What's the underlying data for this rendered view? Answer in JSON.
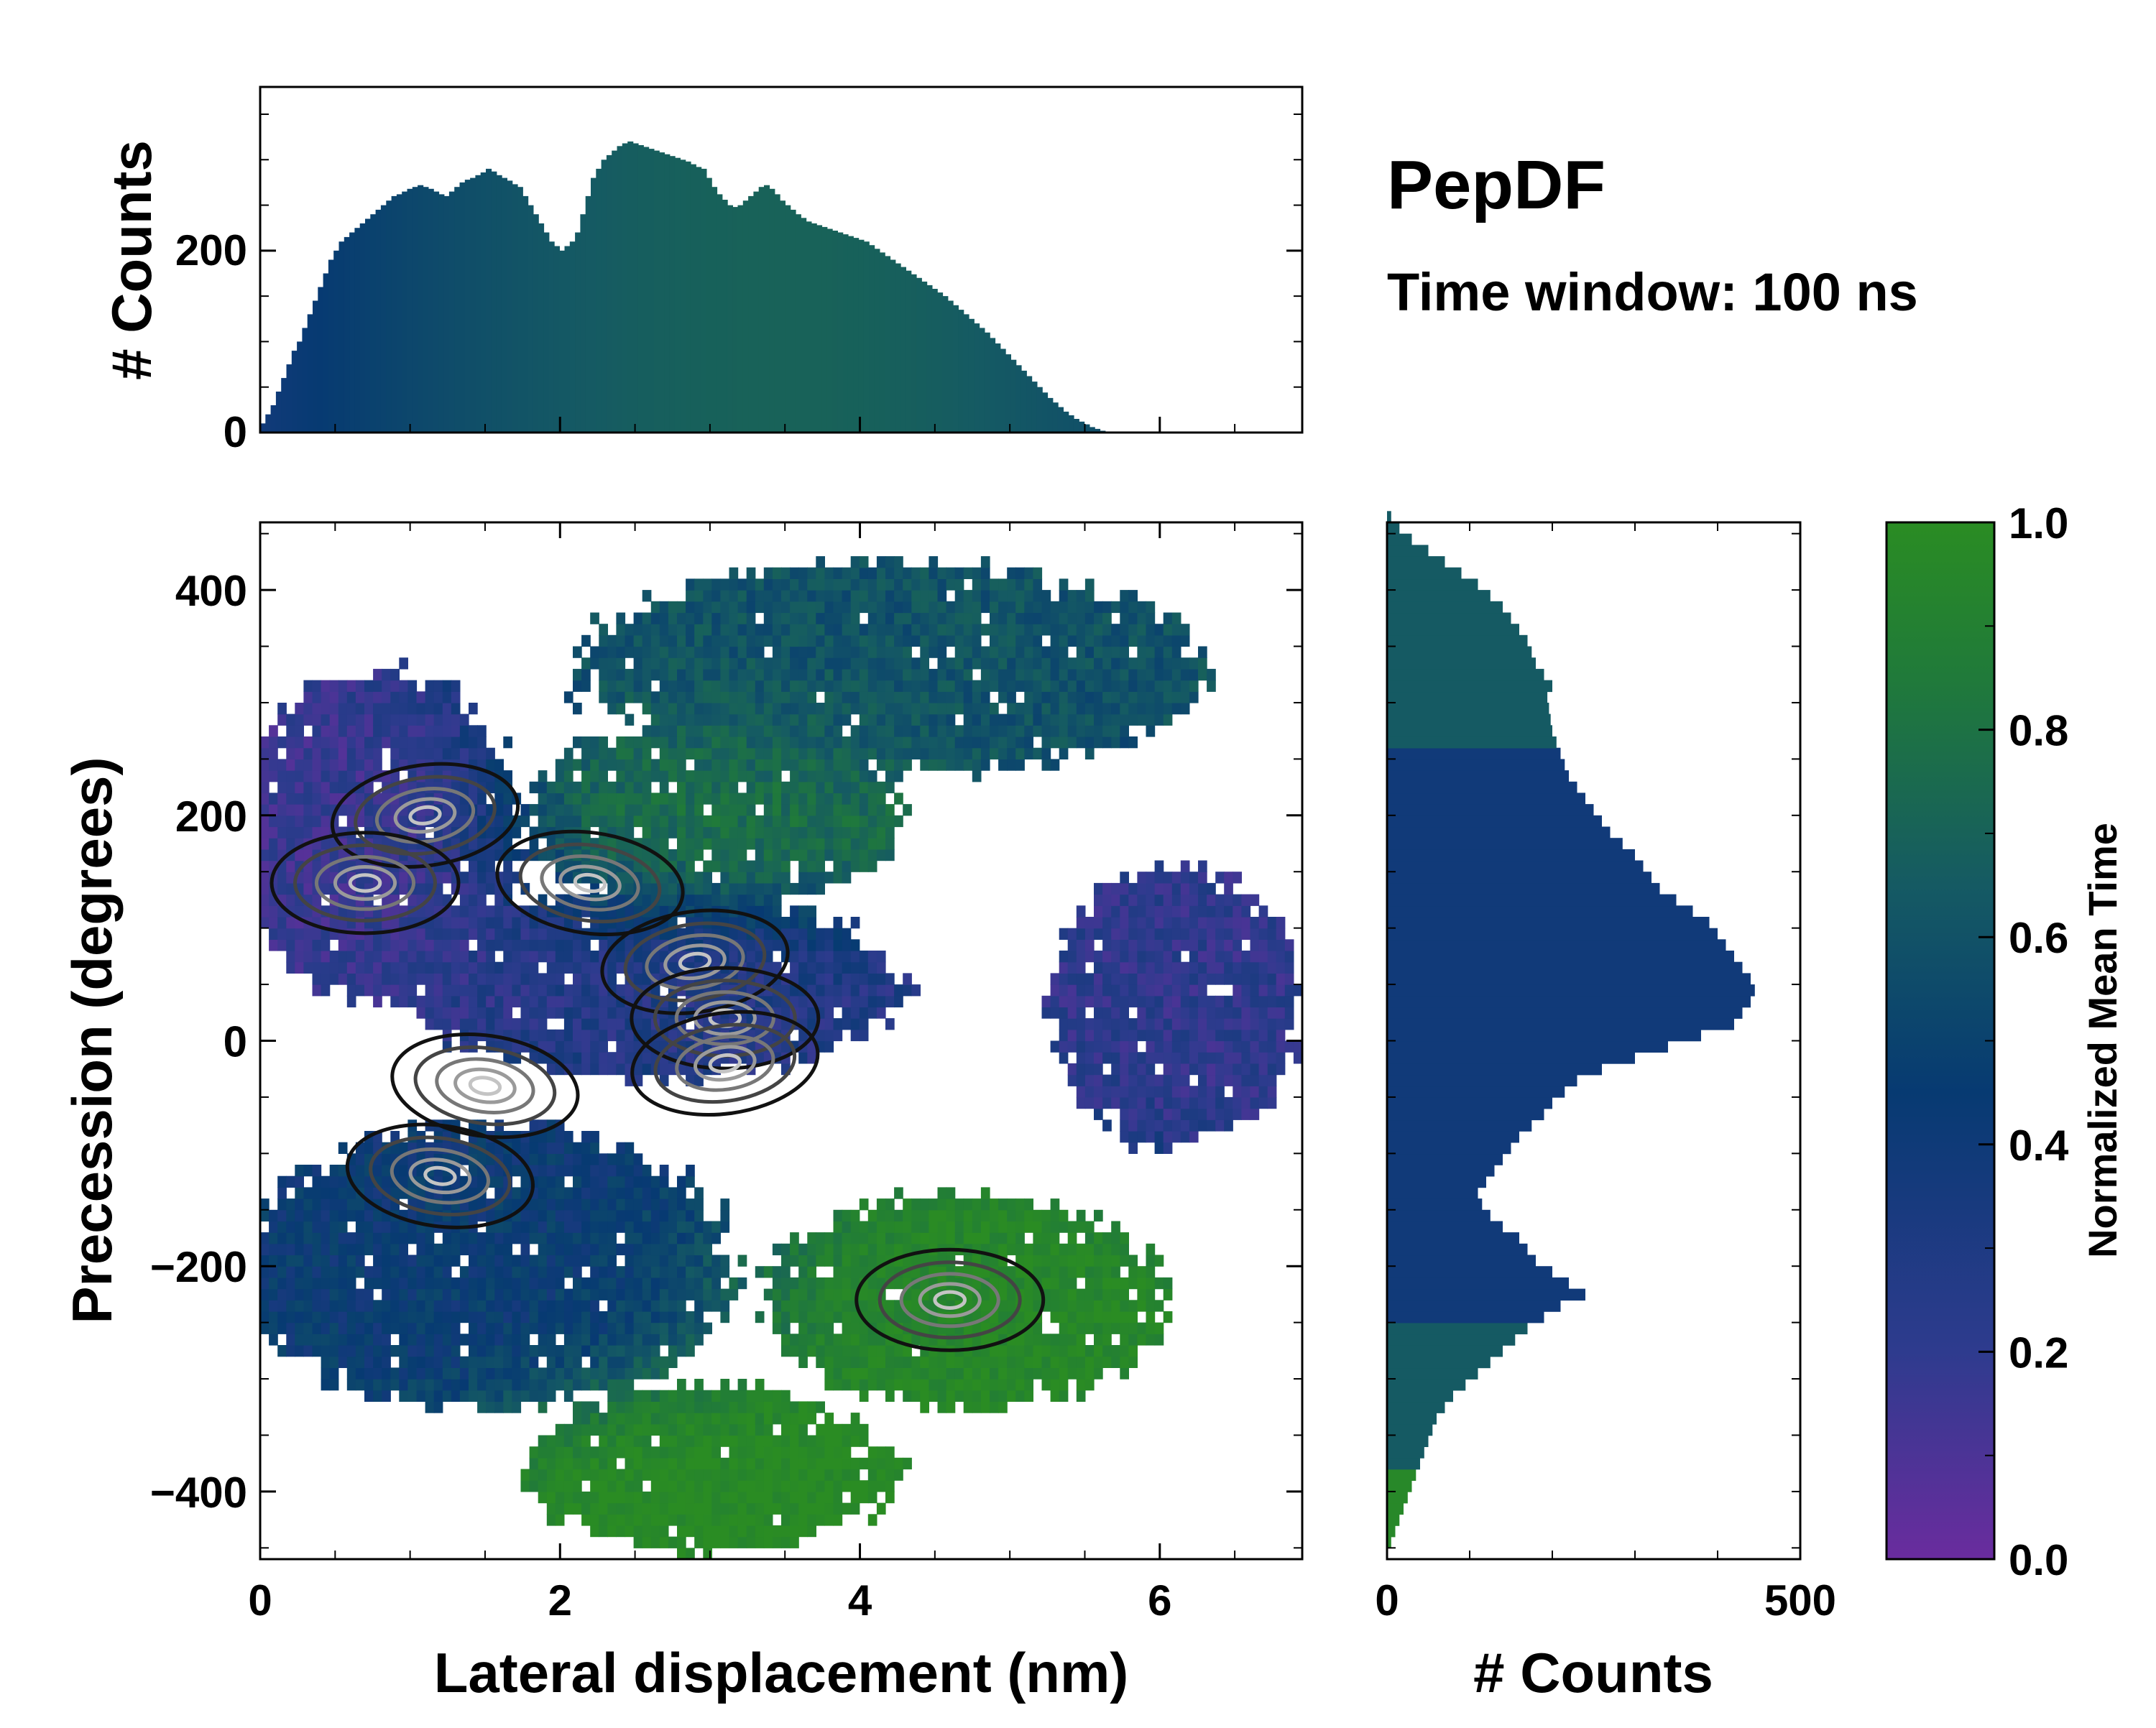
{
  "chart_data": {
    "type": "heatmap",
    "title": "PepDF",
    "subtitle": "Time window: 100 ns",
    "main": {
      "xlabel": "Lateral displacement (nm)",
      "ylabel": "Precession (degrees)",
      "xlim": [
        0,
        6.95
      ],
      "ylim": [
        -460,
        460
      ],
      "xticks": [
        0,
        2,
        4,
        6
      ],
      "xtick_labels": [
        "0",
        "2",
        "4",
        "6"
      ],
      "yticks": [
        400,
        200,
        0,
        -200,
        -400
      ],
      "ytick_labels": [
        "400",
        "200",
        "0",
        "−200",
        "−400"
      ],
      "color_metric": "Normalized Mean Time",
      "grid": false,
      "regions": [
        {
          "name": "upper-left",
          "x": 0.8,
          "y": 180,
          "rx": 0.9,
          "ry": 140,
          "t": 0.15
        },
        {
          "name": "upper-band",
          "x": 4.2,
          "y": 330,
          "rx": 2.0,
          "ry": 90,
          "t": 0.55
        },
        {
          "name": "upper-mid-green",
          "x": 3.0,
          "y": 200,
          "rx": 1.2,
          "ry": 80,
          "t": 0.75
        },
        {
          "name": "center",
          "x": 2.6,
          "y": 50,
          "rx": 1.6,
          "ry": 80,
          "t": 0.25
        },
        {
          "name": "right-arm",
          "x": 6.1,
          "y": 30,
          "rx": 0.8,
          "ry": 120,
          "t": 0.2
        },
        {
          "name": "lower-band",
          "x": 1.5,
          "y": -200,
          "rx": 1.6,
          "ry": 120,
          "t": 0.4
        },
        {
          "name": "lower-right-green",
          "x": 4.7,
          "y": -230,
          "rx": 1.3,
          "ry": 90,
          "t": 0.95
        },
        {
          "name": "bottom-green",
          "x": 3.0,
          "y": -380,
          "rx": 1.2,
          "ry": 70,
          "t": 1.0
        }
      ],
      "density_peaks": [
        {
          "x": 1.1,
          "y": 200
        },
        {
          "x": 0.7,
          "y": 140
        },
        {
          "x": 2.2,
          "y": 140
        },
        {
          "x": 2.9,
          "y": 70
        },
        {
          "x": 3.1,
          "y": 20
        },
        {
          "x": 1.5,
          "y": -40
        },
        {
          "x": 3.1,
          "y": -20
        },
        {
          "x": 4.6,
          "y": -230
        },
        {
          "x": 1.2,
          "y": -120
        }
      ]
    },
    "top_histogram": {
      "ylabel": "# Counts",
      "ylim": [
        0,
        380
      ],
      "yticks": [
        0,
        200
      ],
      "ytick_labels": [
        "0",
        "200"
      ],
      "bin_width_nm": 0.035,
      "values": [
        10,
        20,
        30,
        45,
        60,
        75,
        90,
        100,
        115,
        130,
        145,
        160,
        175,
        190,
        200,
        210,
        215,
        220,
        225,
        230,
        235,
        240,
        245,
        250,
        255,
        260,
        262,
        265,
        268,
        270,
        272,
        270,
        268,
        265,
        262,
        260,
        265,
        270,
        275,
        278,
        280,
        283,
        286,
        290,
        287,
        283,
        280,
        277,
        273,
        270,
        260,
        250,
        240,
        230,
        220,
        210,
        205,
        200,
        205,
        210,
        220,
        240,
        260,
        280,
        290,
        300,
        305,
        310,
        315,
        318,
        320,
        318,
        316,
        314,
        312,
        310,
        308,
        306,
        304,
        302,
        300,
        298,
        295,
        292,
        290,
        280,
        270,
        262,
        256,
        250,
        248,
        250,
        255,
        260,
        265,
        270,
        272,
        268,
        262,
        255,
        250,
        245,
        240,
        236,
        232,
        230,
        228,
        226,
        224,
        222,
        220,
        218,
        216,
        214,
        212,
        210,
        206,
        202,
        198,
        194,
        190,
        186,
        182,
        178,
        174,
        170,
        166,
        162,
        158,
        154,
        150,
        145,
        140,
        135,
        130,
        125,
        120,
        115,
        110,
        104,
        98,
        92,
        86,
        80,
        74,
        68,
        62,
        56,
        50,
        44,
        38,
        33,
        28,
        23,
        19,
        15,
        12,
        9,
        6,
        4,
        2,
        1
      ]
    },
    "right_histogram": {
      "xlabel": "# Counts",
      "xlim": [
        0,
        500
      ],
      "xticks": [
        0,
        500
      ],
      "xtick_labels": [
        "0",
        "500"
      ],
      "bin_width_deg": 10,
      "y_start": -450,
      "values": [
        5,
        10,
        15,
        20,
        25,
        30,
        35,
        40,
        45,
        50,
        55,
        60,
        70,
        80,
        95,
        110,
        125,
        140,
        155,
        170,
        190,
        210,
        240,
        220,
        200,
        180,
        170,
        160,
        140,
        125,
        115,
        110,
        120,
        130,
        140,
        150,
        160,
        175,
        190,
        200,
        215,
        230,
        260,
        300,
        340,
        380,
        420,
        430,
        440,
        445,
        440,
        430,
        420,
        410,
        400,
        390,
        370,
        350,
        330,
        320,
        310,
        300,
        285,
        270,
        260,
        250,
        240,
        230,
        220,
        215,
        210,
        205,
        200,
        198,
        196,
        194,
        200,
        190,
        180,
        175,
        170,
        160,
        150,
        140,
        125,
        110,
        90,
        70,
        50,
        30,
        15,
        5
      ]
    },
    "colorbar": {
      "label": "Normalized Mean Time",
      "range": [
        0.0,
        1.0
      ],
      "ticks": [
        1.0,
        0.8,
        0.6,
        0.4,
        0.2,
        0.0
      ],
      "tick_labels": [
        "1.0",
        "0.8",
        "0.6",
        "0.4",
        "0.2",
        "0.0"
      ],
      "colors": [
        "#6a2c9e",
        "#2e3b8e",
        "#073a72",
        "#155a63",
        "#207a3a",
        "#2a8c23"
      ]
    }
  }
}
